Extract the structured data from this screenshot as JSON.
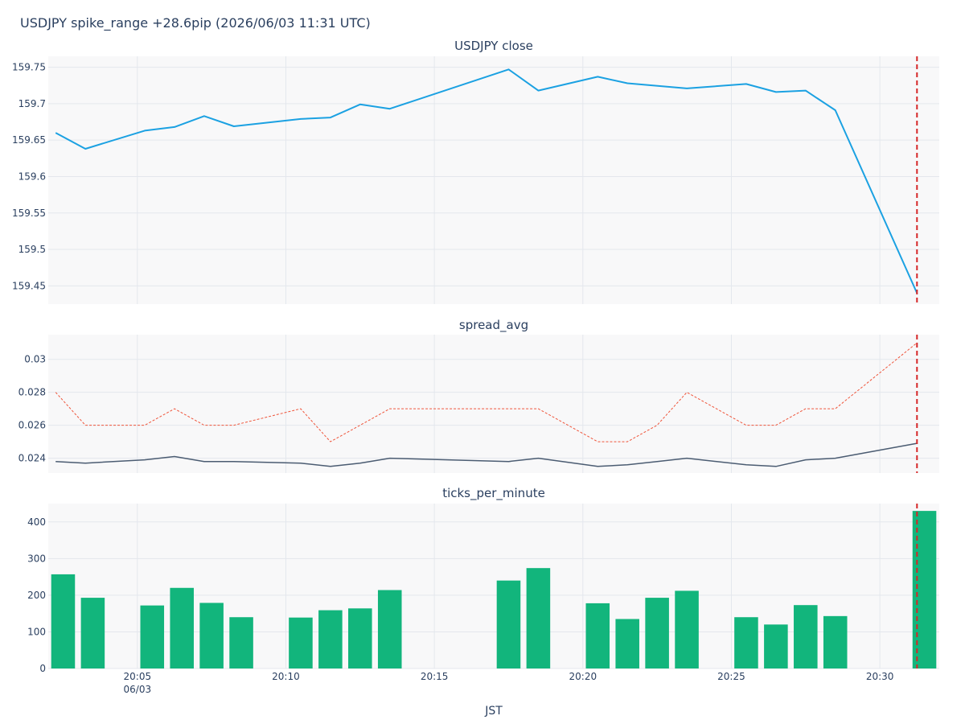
{
  "title": "USDJPY spike_range +28.6pip (2026/06/03 11:31 UTC)",
  "colors": {
    "close_line": "#1ba1e2",
    "spread_line": "#4b5c72",
    "spread_ref": "#ef553b",
    "bars": "#12b57c",
    "event_line": "#d62728",
    "plot_bg": "#f8f8f9",
    "grid": "#e4e7ed"
  },
  "chart_data": [
    {
      "type": "line",
      "title": "USDJPY close",
      "x_minutes": [
        2.25,
        3.25,
        5.25,
        6.25,
        7.25,
        8.25,
        10.5,
        11.5,
        12.5,
        13.5,
        17.5,
        18.5,
        20.5,
        21.5,
        23.5,
        25.5,
        26.5,
        27.5,
        28.5,
        31.25
      ],
      "series": [
        {
          "values": [
            159.66,
            159.638,
            159.663,
            159.668,
            159.683,
            159.669,
            159.679,
            159.681,
            159.699,
            159.693,
            159.747,
            159.718,
            159.737,
            159.728,
            159.721,
            159.727,
            159.716,
            159.718,
            159.691,
            159.44
          ]
        }
      ],
      "ylim": [
        159.425,
        159.765
      ],
      "yticks": [
        "159.45",
        "159.5",
        "159.55",
        "159.6",
        "159.65",
        "159.7",
        "159.75"
      ],
      "grid": true
    },
    {
      "type": "line",
      "title": "spread_avg",
      "x_minutes": [
        2.25,
        3.25,
        5.25,
        6.25,
        7.25,
        8.25,
        10.5,
        11.5,
        12.5,
        13.5,
        17.5,
        18.5,
        20.5,
        21.5,
        22.5,
        23.5,
        25.5,
        26.5,
        27.5,
        28.5,
        31.25
      ],
      "series": [
        {
          "values": [
            0.0238,
            0.0237,
            0.0239,
            0.0241,
            0.0238,
            0.0238,
            0.0237,
            0.0235,
            0.0237,
            0.024,
            0.0238,
            0.024,
            0.0235,
            0.0236,
            0.0238,
            0.024,
            0.0236,
            0.0235,
            0.0239,
            0.024,
            0.0249
          ]
        },
        {
          "values": [
            0.028,
            0.026,
            0.026,
            0.027,
            0.026,
            0.026,
            0.027,
            0.025,
            0.026,
            0.027,
            0.027,
            0.027,
            0.025,
            0.025,
            0.026,
            0.028,
            0.026,
            0.026,
            0.027,
            0.027,
            0.031
          ]
        }
      ],
      "ylim": [
        0.0231,
        0.0315
      ],
      "yticks": [
        "0.024",
        "0.026",
        "0.028",
        "0.03"
      ],
      "grid": true
    },
    {
      "type": "bar",
      "title": "ticks_per_minute",
      "x_minutes": [
        2.5,
        3.5,
        5.5,
        6.5,
        7.5,
        8.5,
        10.5,
        11.5,
        12.5,
        13.5,
        17.5,
        18.5,
        20.5,
        21.5,
        22.5,
        23.5,
        25.5,
        26.5,
        27.5,
        28.5,
        31.5
      ],
      "values": [
        257,
        193,
        172,
        220,
        179,
        140,
        139,
        159,
        164,
        214,
        240,
        274,
        178,
        135,
        193,
        212,
        140,
        120,
        173,
        143,
        430
      ],
      "ylim": [
        0,
        450
      ],
      "yticks": [
        "0",
        "100",
        "200",
        "300",
        "400"
      ],
      "grid": true
    }
  ],
  "x_axis": {
    "label": "JST",
    "xlim_minutes": [
      2.0,
      32.0
    ],
    "ticks": [
      {
        "minute": 5,
        "label": "20:05",
        "sublabel": "06/03"
      },
      {
        "minute": 10,
        "label": "20:10",
        "sublabel": ""
      },
      {
        "minute": 15,
        "label": "20:15",
        "sublabel": ""
      },
      {
        "minute": 20,
        "label": "20:20",
        "sublabel": ""
      },
      {
        "minute": 25,
        "label": "20:25",
        "sublabel": ""
      },
      {
        "minute": 30,
        "label": "20:30",
        "sublabel": ""
      }
    ],
    "event_minute": 31.25
  }
}
